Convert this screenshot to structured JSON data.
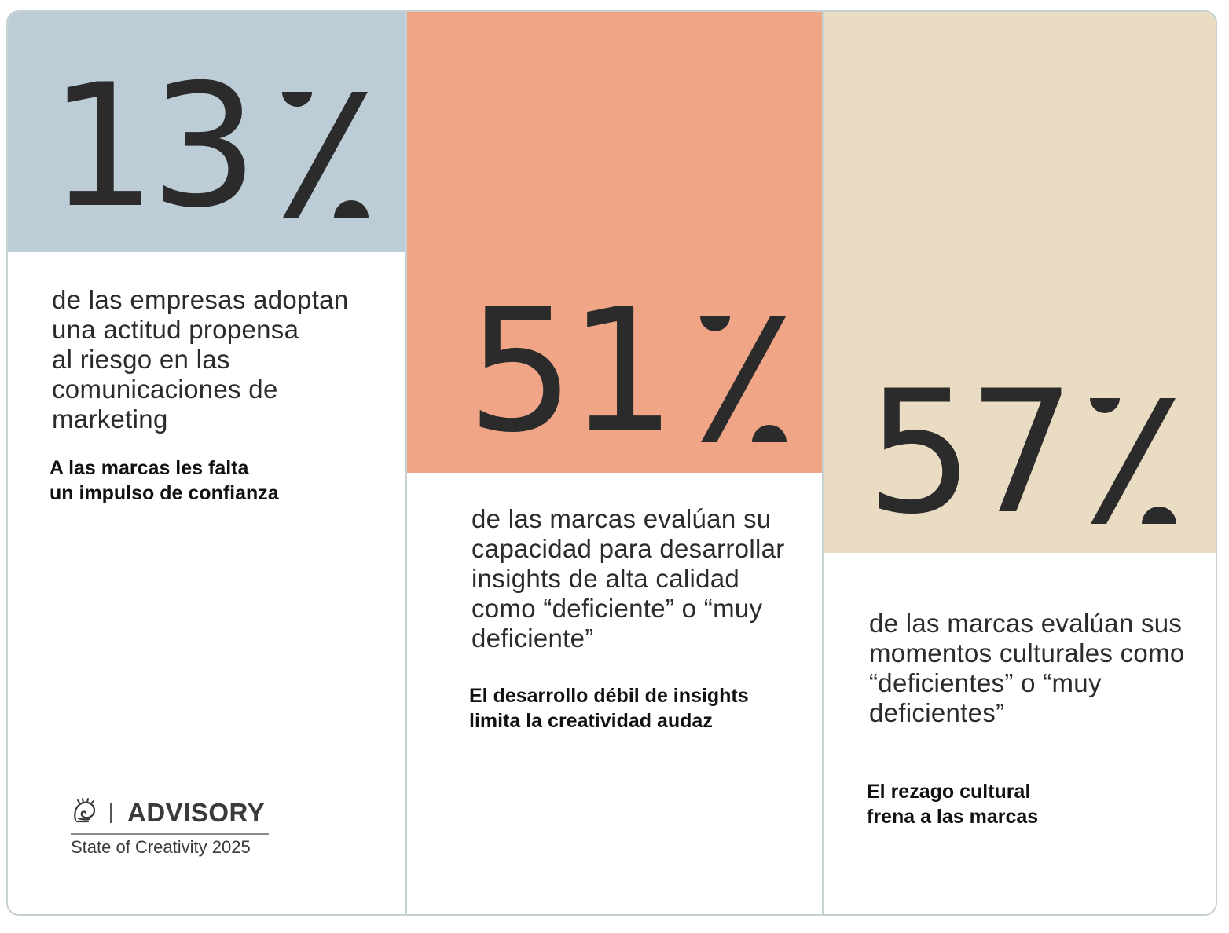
{
  "colors": {
    "panel1": "#bccdd8",
    "panel2": "#efa586",
    "panel3": "#eadcc3",
    "text": "#2b2b2b",
    "border": "#c6d2d2"
  },
  "stats": [
    {
      "number": "13",
      "description": [
        "de las empresas adoptan",
        "una actitud propensa",
        "al riesgo en las",
        "comunicaciones de",
        "marketing"
      ],
      "note": [
        "A las marcas les falta",
        "un impulso de confianza"
      ]
    },
    {
      "number": "51",
      "description": [
        "de las marcas evalúan su",
        "capacidad para desarrollar",
        "insights de alta calidad",
        "como “deficiente” o “muy",
        "deficiente”"
      ],
      "note": [
        "El desarrollo débil de insights",
        "limita la creatividad audaz"
      ]
    },
    {
      "number": "57",
      "description": [
        "de las marcas evalúan sus",
        "momentos culturales como",
        "“deficientes” o “muy",
        "deficientes”"
      ],
      "note": [
        "El rezago cultural",
        "frena a las marcas"
      ]
    }
  ],
  "logo": {
    "icon": "lion-icon",
    "word": "ADVISORY",
    "subtitle": "State of Creativity 2025"
  }
}
